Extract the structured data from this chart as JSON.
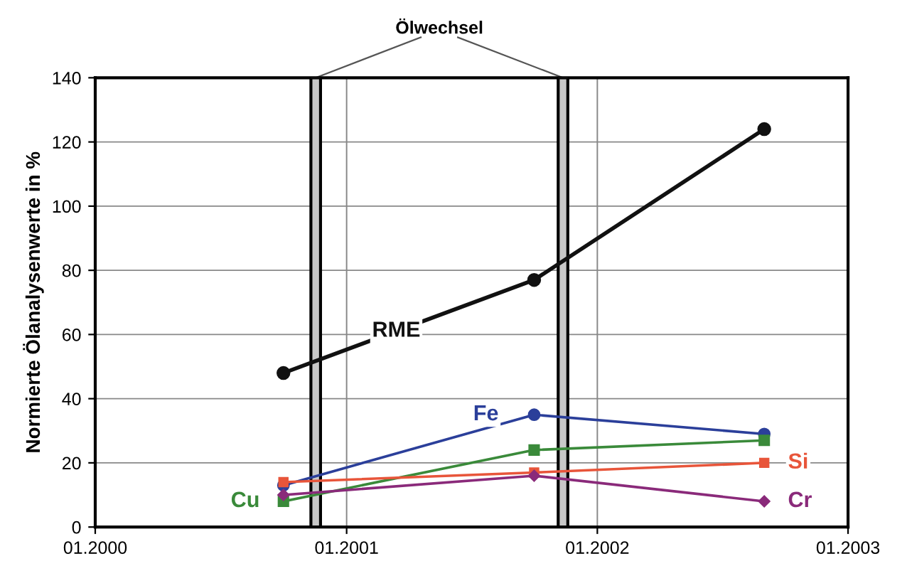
{
  "chart_data": {
    "type": "line",
    "ylabel": "Normierte Ölanalysenwerte in %",
    "x": [
      "2000-10-01",
      "2001-10-01",
      "2002-09-01"
    ],
    "xlim": [
      "2000-01-01",
      "2003-01-01"
    ],
    "xticks": [
      {
        "value": "2000-01-01",
        "label": "01.2000"
      },
      {
        "value": "2001-01-01",
        "label": "01.2001"
      },
      {
        "value": "2002-01-01",
        "label": "01.2002"
      },
      {
        "value": "2003-01-01",
        "label": "01.2003"
      }
    ],
    "ylim": [
      0,
      140
    ],
    "yticks": [
      0,
      20,
      40,
      60,
      80,
      100,
      120,
      140
    ],
    "grid": true,
    "series": [
      {
        "name": "RME",
        "color": "#111111",
        "marker": "circle",
        "values": [
          48,
          77,
          124
        ]
      },
      {
        "name": "Fe",
        "color": "#2b3f9a",
        "marker": "circle",
        "values": [
          13,
          35,
          29
        ]
      },
      {
        "name": "Cu",
        "color": "#3a8a3a",
        "marker": "square",
        "values": [
          8,
          24,
          27
        ]
      },
      {
        "name": "Si",
        "color": "#e8553a",
        "marker": "square",
        "values": [
          14,
          17,
          20
        ]
      },
      {
        "name": "Cr",
        "color": "#8a2a7a",
        "marker": "diamond",
        "values": [
          10,
          16,
          8
        ]
      }
    ],
    "bands": [
      {
        "axis": "x",
        "from": "2000-11-10",
        "to": "2000-11-24",
        "color": "#c8c8c8"
      },
      {
        "axis": "x",
        "from": "2001-11-05",
        "to": "2001-11-19",
        "color": "#c8c8c8"
      }
    ],
    "annotations": [
      "Ölwechsel"
    ]
  }
}
